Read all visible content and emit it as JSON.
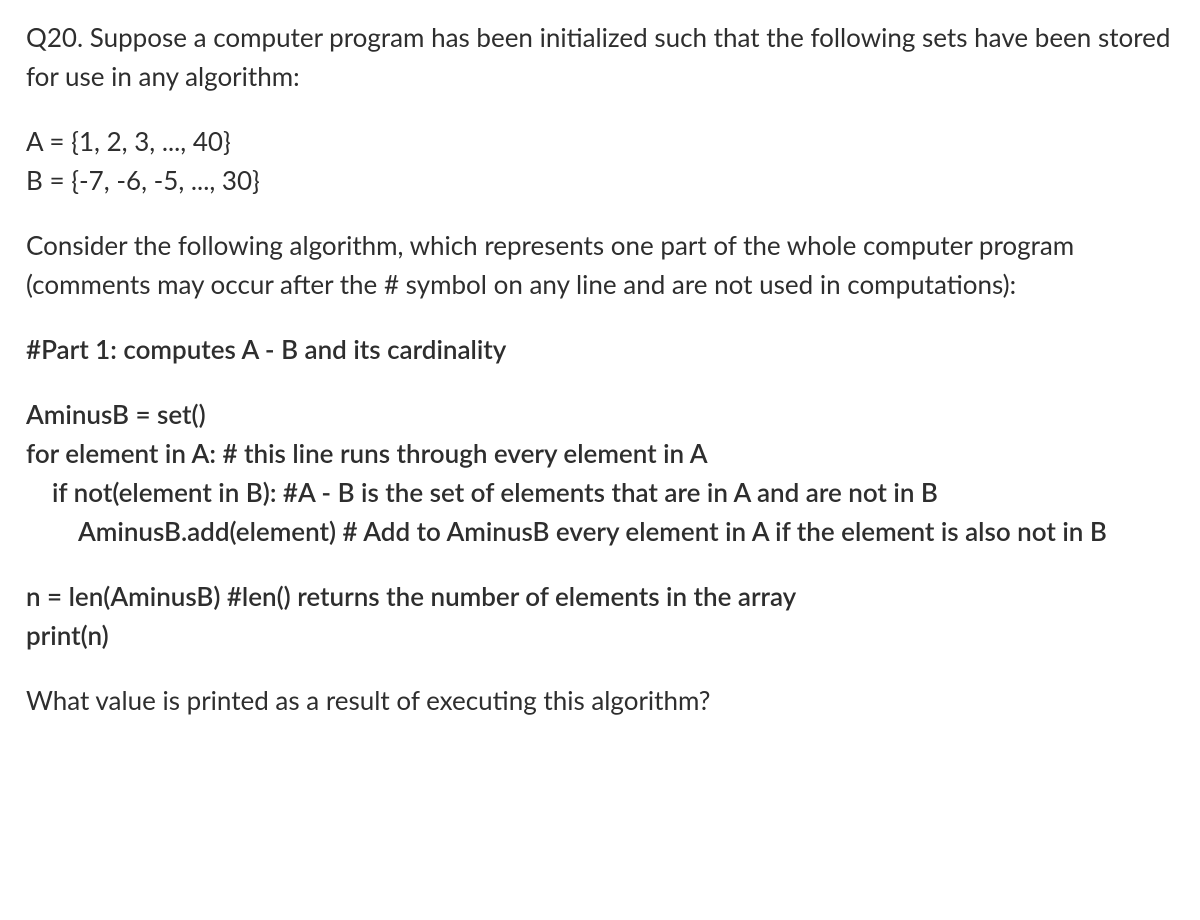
{
  "question": {
    "intro": "Q20. Suppose a computer program has been initialized such that the following sets have been stored for use in any algorithm:",
    "setA": "A = {1, 2, 3, ..., 40}",
    "setB": "B = {-7, -6, -5, ..., 30}",
    "algorithmIntro": "Consider the following algorithm, which represents one part of the whole computer program (comments may occur after the # symbol on any line and are not used in computations):",
    "partHeader": "#Part 1: computes A - B and its cardinality",
    "code": {
      "line1": "AminusB = set()",
      "line2": "for element in A:   # this line runs through every element in A",
      "line3": "if not(element in B): #A - B is the set of elements that are in A and are not in B",
      "line4": "AminusB.add(element) # Add to AminusB every element in A if the element is also not in B",
      "line5": "n = len(AminusB) #len() returns the number of elements in the array",
      "line6": "print(n)"
    },
    "finalQuestion": "What value is printed as a result of executing this algorithm?"
  },
  "styling": {
    "backgroundColor": "#ffffff",
    "textColor": "#2e2e2e",
    "fontSize": 26,
    "fontWeight": {
      "regular": 400,
      "bold": 600
    },
    "lineHeight": 1.5,
    "indentStep": 26
  }
}
